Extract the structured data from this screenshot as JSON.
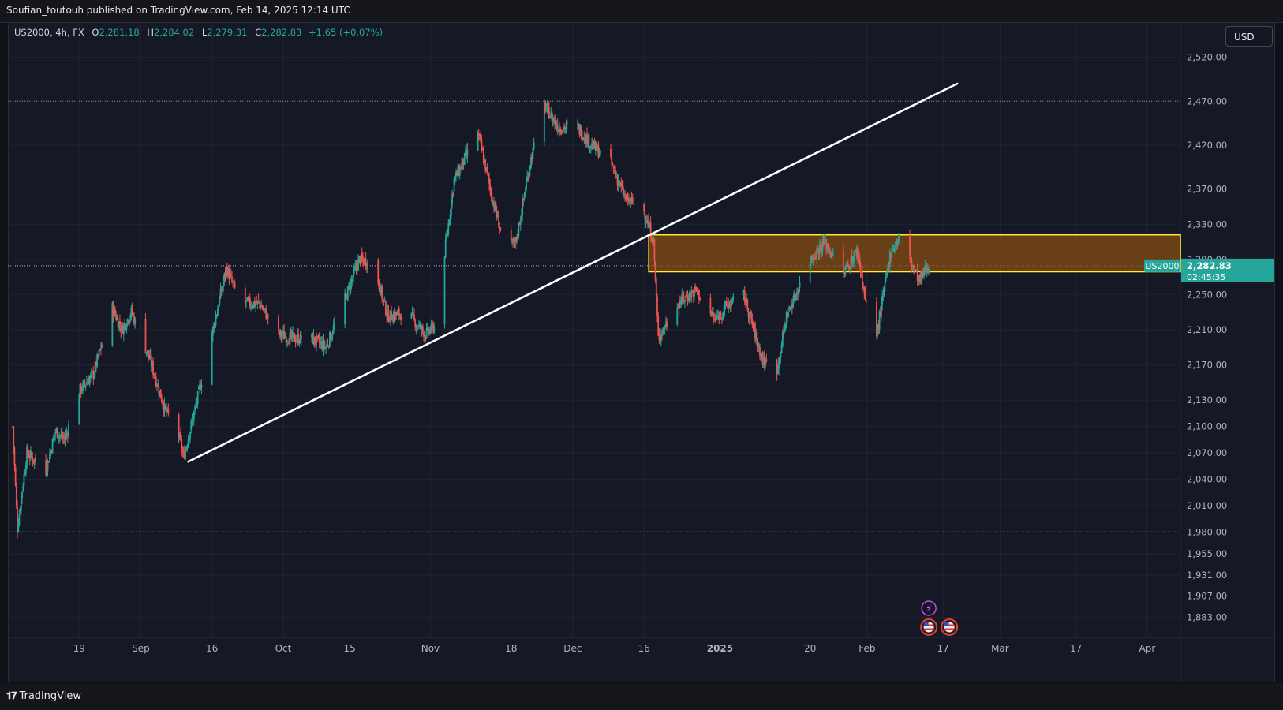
{
  "header": {
    "publisher_text": "Soufian_toutouh published on TradingView.com, Feb 14, 2025 12:14 UTC"
  },
  "symbol_info": {
    "symbol": "US2000, 4h, FX",
    "open_label": "O",
    "open": "2,281.18",
    "high_label": "H",
    "high": "2,284.02",
    "low_label": "L",
    "low": "2,279.31",
    "close_label": "C",
    "close": "2,282.83",
    "change": "+1.65 (+0.07%)"
  },
  "currency": "USD",
  "price_tag": {
    "symbol": "US2000",
    "price": "2,282.83",
    "countdown": "02:45:35"
  },
  "footer": {
    "logo_text": "TradingView"
  },
  "colors": {
    "up": "#26a69a",
    "down": "#ef5350",
    "zone_fill": "#8a4d12",
    "zone_border": "#ffee33",
    "trendline": "#ffffff",
    "bg": "#151925"
  },
  "chart_data": {
    "type": "candlestick",
    "symbol": "US2000",
    "interval": "4h",
    "y_ticks": [
      {
        "label": "2,520.00",
        "value": 2520
      },
      {
        "label": "2,470.00",
        "value": 2470
      },
      {
        "label": "2,420.00",
        "value": 2420
      },
      {
        "label": "2,370.00",
        "value": 2370
      },
      {
        "label": "2,330.00",
        "value": 2330
      },
      {
        "label": "2,290.00",
        "value": 2290
      },
      {
        "label": "2,250.00",
        "value": 2250
      },
      {
        "label": "2,210.00",
        "value": 2210
      },
      {
        "label": "2,170.00",
        "value": 2170
      },
      {
        "label": "2,130.00",
        "value": 2130
      },
      {
        "label": "2,100.00",
        "value": 2100
      },
      {
        "label": "2,070.00",
        "value": 2070
      },
      {
        "label": "2,040.00",
        "value": 2040
      },
      {
        "label": "2,010.00",
        "value": 2010
      },
      {
        "label": "1,980.00",
        "value": 1980
      },
      {
        "label": "1,955.00",
        "value": 1955
      },
      {
        "label": "1,931.00",
        "value": 1931
      },
      {
        "label": "1,907.00",
        "value": 1907
      },
      {
        "label": "1,883.00",
        "value": 1883
      }
    ],
    "x_ticks": [
      "19",
      "Sep",
      "16",
      "Oct",
      "15",
      "Nov",
      "18",
      "Dec",
      "16",
      "2025",
      "20",
      "Feb",
      "17",
      "Mar",
      "17",
      "Apr"
    ],
    "x_tick_dates": [
      "2024-08-19",
      "2024-09-01",
      "2024-09-16",
      "2024-10-01",
      "2024-10-15",
      "2024-11-01",
      "2024-11-18",
      "2024-12-01",
      "2024-12-16",
      "2025-01-01",
      "2025-01-20",
      "2025-02-01",
      "2025-02-17",
      "2025-03-01",
      "2025-03-17",
      "2025-04-01"
    ],
    "x_range": [
      "2024-08-04",
      "2025-04-08"
    ],
    "y_range": [
      1860,
      2560
    ],
    "price_path": [
      [
        "2024-08-05",
        2100
      ],
      [
        "2024-08-06",
        1985
      ],
      [
        "2024-08-08",
        2070
      ],
      [
        "2024-08-12",
        2050
      ],
      [
        "2024-08-14",
        2095
      ],
      [
        "2024-08-16",
        2085
      ],
      [
        "2024-08-19",
        2140
      ],
      [
        "2024-08-22",
        2160
      ],
      [
        "2024-08-26",
        2235
      ],
      [
        "2024-08-28",
        2210
      ],
      [
        "2024-08-30",
        2230
      ],
      [
        "2024-09-03",
        2175
      ],
      [
        "2024-09-06",
        2120
      ],
      [
        "2024-09-09",
        2090
      ],
      [
        "2024-09-10",
        2065
      ],
      [
        "2024-09-12",
        2110
      ],
      [
        "2024-09-16",
        2205
      ],
      [
        "2024-09-19",
        2280
      ],
      [
        "2024-09-22",
        2240
      ],
      [
        "2024-09-26",
        2240
      ],
      [
        "2024-09-30",
        2205
      ],
      [
        "2024-10-03",
        2200
      ],
      [
        "2024-10-07",
        2200
      ],
      [
        "2024-10-10",
        2190
      ],
      [
        "2024-10-14",
        2245
      ],
      [
        "2024-10-17",
        2290
      ],
      [
        "2024-10-20",
        2285
      ],
      [
        "2024-10-23",
        2225
      ],
      [
        "2024-10-27",
        2230
      ],
      [
        "2024-10-31",
        2205
      ],
      [
        "2024-11-02",
        2215
      ],
      [
        "2024-11-06",
        2380
      ],
      [
        "2024-11-11",
        2435
      ],
      [
        "2024-11-14",
        2360
      ],
      [
        "2024-11-17",
        2300
      ],
      [
        "2024-11-19",
        2310
      ],
      [
        "2024-11-22",
        2400
      ],
      [
        "2024-11-25",
        2465
      ],
      [
        "2024-11-28",
        2440
      ],
      [
        "2024-12-02",
        2440
      ],
      [
        "2024-12-05",
        2420
      ],
      [
        "2024-12-09",
        2400
      ],
      [
        "2024-12-12",
        2360
      ],
      [
        "2024-12-16",
        2345
      ],
      [
        "2024-12-18",
        2310
      ],
      [
        "2024-12-19",
        2200
      ],
      [
        "2024-12-23",
        2240
      ],
      [
        "2024-12-27",
        2255
      ],
      [
        "2024-12-31",
        2220
      ],
      [
        "2025-01-02",
        2235
      ],
      [
        "2025-01-06",
        2250
      ],
      [
        "2025-01-10",
        2175
      ],
      [
        "2025-01-13",
        2165
      ],
      [
        "2025-01-15",
        2225
      ],
      [
        "2025-01-20",
        2290
      ],
      [
        "2025-01-23",
        2310
      ],
      [
        "2025-01-27",
        2275
      ],
      [
        "2025-01-30",
        2300
      ],
      [
        "2025-02-01",
        2230
      ],
      [
        "2025-02-03",
        2205
      ],
      [
        "2025-02-06",
        2300
      ],
      [
        "2025-02-08",
        2315
      ],
      [
        "2025-02-10",
        2290
      ],
      [
        "2025-02-12",
        2265
      ],
      [
        "2025-02-13",
        2275
      ],
      [
        "2025-02-14",
        2282.83
      ]
    ],
    "last_price": 2282.83,
    "horizontal_levels": [
      2470,
      2282.83,
      1980
    ],
    "trendline": {
      "from": [
        "2024-09-11",
        2060
      ],
      "to": [
        "2025-02-20",
        2490
      ]
    },
    "zone": {
      "from": "2024-12-17",
      "to": "2025-04-08",
      "top": 2318,
      "bottom": 2276
    },
    "event_markers": [
      "lightning",
      "us-flag",
      "us-flag"
    ]
  }
}
